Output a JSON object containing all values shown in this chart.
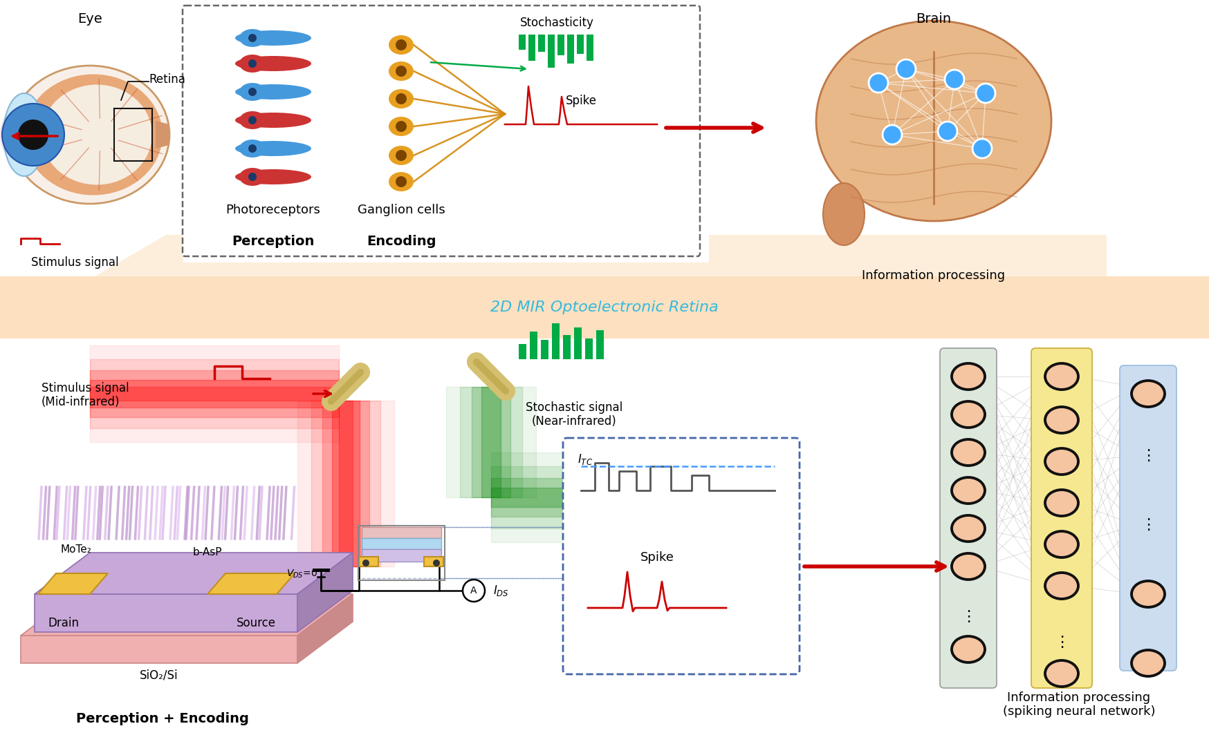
{
  "bg_color": "#ffffff",
  "mid_banner_text": "2D MIR Optoelectronic Retina",
  "mid_banner_text_color": "#33bbdd",
  "eye_label": "Eye",
  "retina_label": "Retina",
  "stimulus_label": "Stimulus signal",
  "photoreceptors_label": "Photoreceptors",
  "ganglion_label": "Ganglion cells",
  "stochasticity_label": "Stochasticity",
  "spike_label_top": "Spike",
  "perception_label": "Perception",
  "encoding_label": "Encoding",
  "brain_label": "Brain",
  "info_processing_label": "Information processing",
  "stimulus_mid_label": "Stimulus signal\n(Mid-infrared)",
  "mote2_label": "MoTe₂",
  "basp_label": "b-AsP",
  "drain_label": "Drain",
  "source_label": "Source",
  "sio2_label": "SiO₂/Si",
  "stochastic_signal_label": "Stochastic signal\n(Near-infrared)",
  "itc_label": "$I_{TC}$",
  "spike_label_bottom": "Spike",
  "vds_label": "$V_{DS}$=0",
  "ids_label": "$I_{DS}$",
  "perception_encoding_label": "Perception + Encoding",
  "info_processing_snn_label": "Information processing\n(spiking neural network)",
  "neuron_fill": "#f5c4a0",
  "neuron_edge": "#111111",
  "photoreceptor_blue": "#4499dd",
  "photoreceptor_red": "#cc3333",
  "ganglion_orange": "#e8a020",
  "red_arrow_color": "#cc0000",
  "green_signal_color": "#00aa44",
  "brain_fill": "#e8b888",
  "neural_net_bg1": "#dde8dd",
  "neural_net_bg2": "#f5e890",
  "neural_net_bg3": "#ccddf0"
}
